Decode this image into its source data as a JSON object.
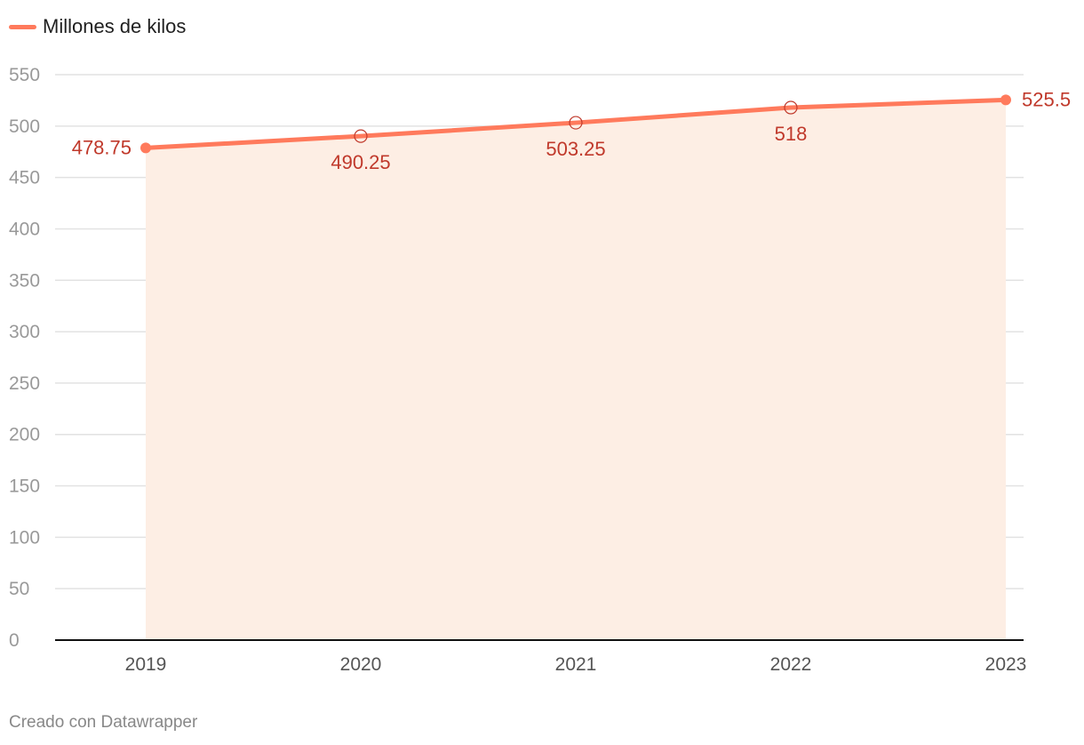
{
  "chart_data": {
    "type": "area",
    "x": [
      "2019",
      "2020",
      "2021",
      "2022",
      "2023"
    ],
    "series": [
      {
        "name": "Millones de kilos",
        "values": [
          478.75,
          490.25,
          503.25,
          518,
          525.5
        ],
        "labels": [
          "478.75",
          "490.25",
          "503.25",
          "518",
          "525.5"
        ]
      }
    ],
    "ylim": [
      0,
      550
    ],
    "yticks": [
      0,
      50,
      100,
      150,
      200,
      250,
      300,
      350,
      400,
      450,
      500,
      550
    ],
    "grid": true,
    "legend_position": "top-left",
    "colors": {
      "line": "#ff7a5c",
      "area": "#fdeee4",
      "label": "#c0392b",
      "grid": "#e2e2e2",
      "axis": "#111111"
    }
  },
  "legend": {
    "label": "Millones de kilos"
  },
  "footer": {
    "credit": "Creado con Datawrapper"
  }
}
